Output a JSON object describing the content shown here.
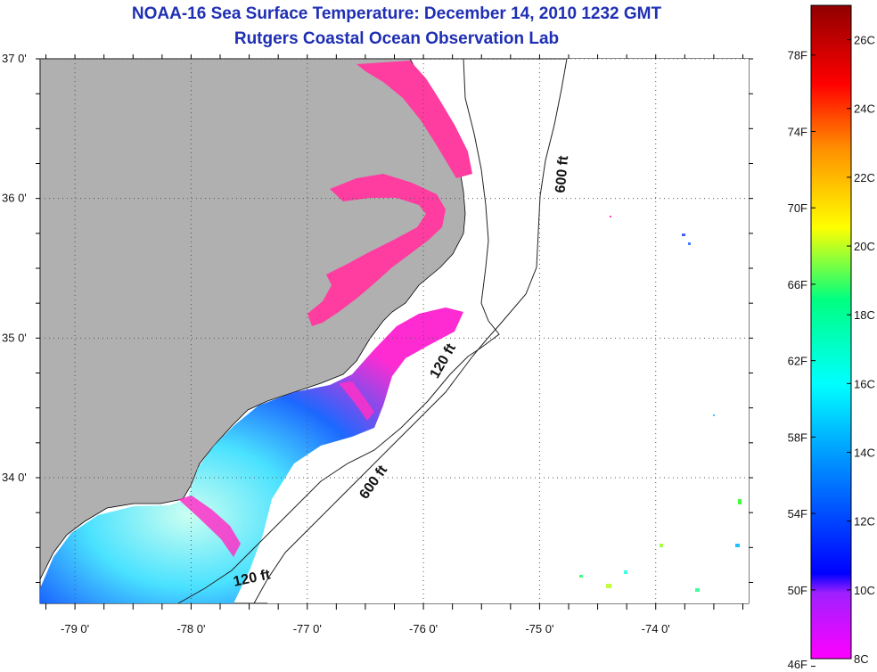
{
  "title": {
    "line1": "NOAA-16 Sea Surface Temperature:  December 14, 2010 1232 GMT",
    "line2": "Rutgers Coastal Ocean Observation Lab"
  },
  "colors": {
    "title": "#1f2fb3",
    "land": "#b0b0b0",
    "ocean_no_data": "#ffffff",
    "grid": "#555555",
    "contour": "#222222"
  },
  "map": {
    "lat_range": [
      33.1,
      37.0
    ],
    "lon_range": [
      -79.3,
      -73.2
    ],
    "lat_ticks": [
      {
        "value": 37.0,
        "label": "37 0'"
      },
      {
        "value": 36.0,
        "label": "36 0'"
      },
      {
        "value": 35.0,
        "label": "35 0'"
      },
      {
        "value": 34.0,
        "label": "34 0'"
      }
    ],
    "lon_ticks": [
      {
        "value": -79.0,
        "label": "-79 0'"
      },
      {
        "value": -78.0,
        "label": "-78 0'"
      },
      {
        "value": -77.0,
        "label": "-77 0'"
      },
      {
        "value": -76.0,
        "label": "-76 0'"
      },
      {
        "value": -75.0,
        "label": "-75 0'"
      },
      {
        "value": -74.0,
        "label": "-74 0'"
      }
    ],
    "contour_labels": [
      {
        "text": "600 ft",
        "lon": -74.77,
        "lat": 36.17,
        "angle": -85
      },
      {
        "text": "120 ft",
        "lon": -75.8,
        "lat": 34.82,
        "angle": -60
      },
      {
        "text": "600 ft",
        "lon": -76.4,
        "lat": 33.95,
        "angle": -55
      },
      {
        "text": "120 ft",
        "lon": -77.47,
        "lat": 33.25,
        "angle": -12
      }
    ]
  },
  "colorbar": {
    "fahrenheit_labels": [
      "78F",
      "74F",
      "70F",
      "66F",
      "62F",
      "58F",
      "54F",
      "50F",
      "46F"
    ],
    "celsius_labels": [
      "26C",
      "24C",
      "22C",
      "20C",
      "18C",
      "16C",
      "14C",
      "12C",
      "10C",
      "8C"
    ],
    "range_c": [
      8,
      27
    ]
  }
}
